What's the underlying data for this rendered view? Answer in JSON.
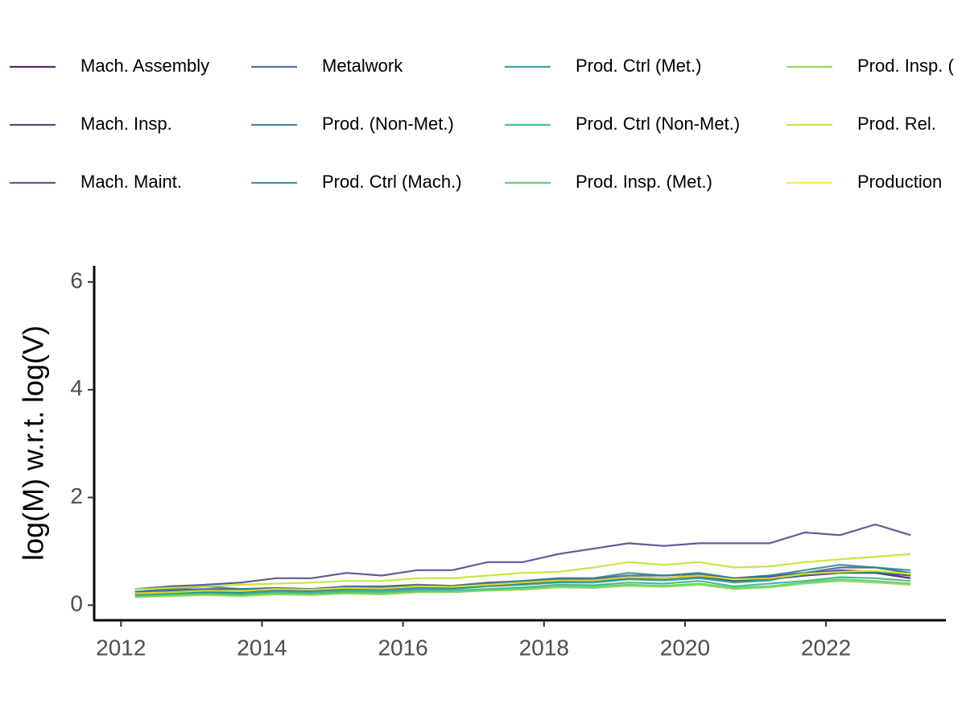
{
  "chart_data": {
    "type": "line",
    "y_label": "log(M) w.r.t. log(V)",
    "x": [
      2012.2,
      2012.7,
      2013.2,
      2013.7,
      2014.2,
      2014.7,
      2015.2,
      2015.7,
      2016.2,
      2016.7,
      2017.2,
      2017.7,
      2018.2,
      2018.7,
      2019.2,
      2019.7,
      2020.2,
      2020.7,
      2021.2,
      2021.7,
      2022.2,
      2022.7,
      2023.2
    ],
    "xlim": [
      2011.62,
      2023.7
    ],
    "xticks": [
      2012,
      2014,
      2016,
      2018,
      2020,
      2022
    ],
    "ylim": [
      -0.28,
      6.3
    ],
    "yticks": [
      0,
      2,
      4,
      6
    ],
    "series": [
      {
        "name": "Mach. Assembly",
        "color": "#440154",
        "values": [
          0.2,
          0.22,
          0.25,
          0.24,
          0.3,
          0.28,
          0.32,
          0.3,
          0.35,
          0.33,
          0.38,
          0.4,
          0.45,
          0.45,
          0.5,
          0.5,
          0.55,
          0.45,
          0.5,
          0.55,
          0.6,
          0.6,
          0.5
        ]
      },
      {
        "name": "Mach. Insp.",
        "color": "#482173",
        "values": [
          0.22,
          0.25,
          0.28,
          0.26,
          0.3,
          0.3,
          0.33,
          0.32,
          0.36,
          0.35,
          0.4,
          0.42,
          0.48,
          0.47,
          0.52,
          0.5,
          0.55,
          0.5,
          0.52,
          0.58,
          0.65,
          0.62,
          0.55
        ]
      },
      {
        "name": "Mach. Maint.",
        "color": "#433E85",
        "values": [
          0.3,
          0.35,
          0.38,
          0.42,
          0.5,
          0.5,
          0.6,
          0.55,
          0.65,
          0.65,
          0.8,
          0.8,
          0.95,
          1.05,
          1.15,
          1.1,
          1.15,
          1.15,
          1.15,
          1.35,
          1.3,
          1.5,
          1.3
        ]
      },
      {
        "name": "Metalwork",
        "color": "#38598C",
        "values": [
          0.25,
          0.28,
          0.3,
          0.3,
          0.32,
          0.3,
          0.35,
          0.35,
          0.38,
          0.36,
          0.42,
          0.45,
          0.5,
          0.5,
          0.55,
          0.55,
          0.58,
          0.5,
          0.55,
          0.6,
          0.7,
          0.7,
          0.6
        ]
      },
      {
        "name": "Prod. (Non-Met.)",
        "color": "#2D708E",
        "values": [
          0.2,
          0.24,
          0.26,
          0.25,
          0.28,
          0.27,
          0.3,
          0.3,
          0.33,
          0.32,
          0.36,
          0.4,
          0.44,
          0.45,
          0.5,
          0.48,
          0.52,
          0.45,
          0.48,
          0.55,
          0.62,
          0.6,
          0.55
        ]
      },
      {
        "name": "Prod. Ctrl (Mach.)",
        "color": "#25858E",
        "values": [
          0.25,
          0.3,
          0.35,
          0.3,
          0.3,
          0.28,
          0.32,
          0.3,
          0.35,
          0.34,
          0.4,
          0.45,
          0.5,
          0.5,
          0.6,
          0.55,
          0.6,
          0.5,
          0.55,
          0.65,
          0.75,
          0.7,
          0.65
        ]
      },
      {
        "name": "Prod. Ctrl (Met.)",
        "color": "#1E9B8A",
        "values": [
          0.2,
          0.22,
          0.24,
          0.22,
          0.26,
          0.25,
          0.28,
          0.27,
          0.3,
          0.3,
          0.35,
          0.38,
          0.42,
          0.42,
          0.48,
          0.46,
          0.5,
          0.42,
          0.46,
          0.6,
          0.6,
          0.62,
          0.6
        ]
      },
      {
        "name": "Prod. Ctrl (Non-Met.)",
        "color": "#2BB07F",
        "values": [
          0.18,
          0.2,
          0.22,
          0.2,
          0.24,
          0.22,
          0.25,
          0.24,
          0.27,
          0.27,
          0.3,
          0.33,
          0.38,
          0.37,
          0.42,
          0.4,
          0.45,
          0.35,
          0.4,
          0.45,
          0.52,
          0.5,
          0.45
        ]
      },
      {
        "name": "Prod. Insp. (Met.)",
        "color": "#51C56A",
        "values": [
          0.16,
          0.18,
          0.2,
          0.18,
          0.22,
          0.2,
          0.23,
          0.22,
          0.25,
          0.25,
          0.28,
          0.3,
          0.35,
          0.34,
          0.38,
          0.36,
          0.4,
          0.32,
          0.35,
          0.42,
          0.48,
          0.45,
          0.4
        ]
      },
      {
        "name": "Prod. Insp. (",
        "color": "#85D54A",
        "values": [
          0.15,
          0.17,
          0.19,
          0.17,
          0.2,
          0.19,
          0.22,
          0.2,
          0.24,
          0.24,
          0.27,
          0.29,
          0.33,
          0.32,
          0.36,
          0.34,
          0.38,
          0.3,
          0.33,
          0.4,
          0.45,
          0.42,
          0.38
        ]
      },
      {
        "name": "Prod. Rel.",
        "color": "#C2DF23",
        "values": [
          0.3,
          0.32,
          0.35,
          0.38,
          0.4,
          0.42,
          0.45,
          0.45,
          0.5,
          0.5,
          0.55,
          0.6,
          0.62,
          0.7,
          0.8,
          0.75,
          0.8,
          0.7,
          0.72,
          0.8,
          0.85,
          0.9,
          0.95
        ]
      },
      {
        "name": "Production",
        "color": "#FDE725",
        "values": [
          0.22,
          0.24,
          0.27,
          0.26,
          0.3,
          0.29,
          0.32,
          0.31,
          0.35,
          0.34,
          0.38,
          0.42,
          0.46,
          0.46,
          0.52,
          0.5,
          0.55,
          0.48,
          0.5,
          0.58,
          0.62,
          0.64,
          0.58
        ]
      }
    ]
  }
}
